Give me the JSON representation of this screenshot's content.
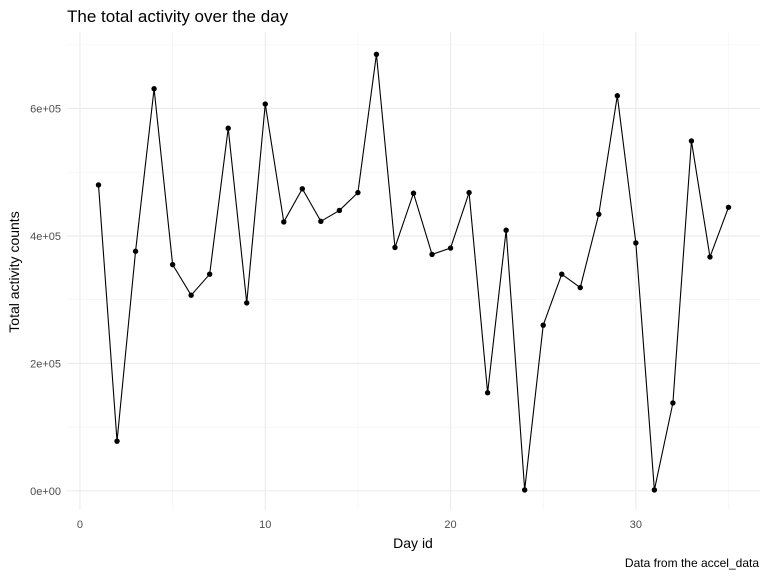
{
  "chart_data": {
    "type": "line",
    "title": "The total activity over the day",
    "xlabel": "Day id",
    "ylabel": "Total activity counts",
    "caption": "Data from the accel_data",
    "xlim": [
      -0.7,
      36.7
    ],
    "ylim": [
      -30000,
      720000
    ],
    "x_ticks": [
      0,
      10,
      20,
      30
    ],
    "x_tick_labels": [
      "0",
      "10",
      "20",
      "30"
    ],
    "y_ticks": [
      0,
      200000,
      400000,
      600000
    ],
    "y_tick_labels": [
      "0e+00",
      "2e+05",
      "4e+05",
      "6e+05"
    ],
    "grid": true,
    "legend": "none",
    "series": [
      {
        "color": "#000000",
        "x": [
          1,
          2,
          3,
          4,
          5,
          6,
          7,
          8,
          9,
          10,
          11,
          12,
          13,
          14,
          15,
          16,
          17,
          18,
          19,
          20,
          21,
          22,
          23,
          24,
          25,
          26,
          27,
          28,
          29,
          30,
          31,
          32,
          33,
          34,
          35
        ],
        "y": [
          480000,
          78000,
          376000,
          631000,
          355000,
          307000,
          340000,
          569000,
          295000,
          607000,
          422000,
          474000,
          423000,
          440000,
          468000,
          685000,
          382000,
          467000,
          371000,
          381000,
          468000,
          154000,
          409000,
          1440,
          260000,
          340000,
          319000,
          434000,
          620000,
          389000,
          1440,
          138000,
          549000,
          367000,
          445000
        ]
      }
    ]
  }
}
